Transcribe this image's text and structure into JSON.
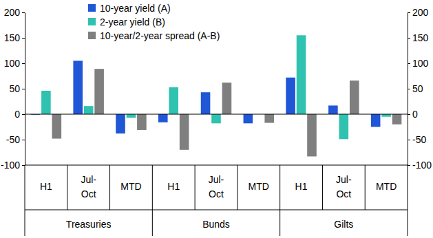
{
  "chart_data": {
    "type": "bar",
    "categories": [
      "H1",
      "Jul-Oct",
      "MTD",
      "H1",
      "Jul-Oct",
      "MTD",
      "H1",
      "Jul-Oct",
      "MTD"
    ],
    "group_categories": [
      "Treasuries",
      "Bunds",
      "Gilts"
    ],
    "series": [
      {
        "name": "10-year yield (A)",
        "color": "#1f57d6",
        "values": [
          -1,
          105,
          -38,
          -16,
          43,
          -18,
          72,
          17,
          -25
        ]
      },
      {
        "name": "2-year yield (B)",
        "color": "#2fc2b0",
        "values": [
          46,
          16,
          -7,
          53,
          -18,
          0,
          155,
          -49,
          -5
        ]
      },
      {
        "name": "10-year/2-year spread (A-B)",
        "color": "#7f7f7f",
        "values": [
          -48,
          89,
          -31,
          -70,
          62,
          -17,
          -83,
          66,
          -20
        ]
      }
    ],
    "ylim": [
      -100,
      200
    ],
    "yticks": [
      -100,
      -50,
      0,
      50,
      100,
      150,
      200
    ],
    "y2lim": [
      -100,
      200
    ],
    "y2ticks": [
      -100,
      -50,
      0,
      50,
      100,
      150,
      200
    ],
    "legend": "upper left",
    "grid": false
  }
}
